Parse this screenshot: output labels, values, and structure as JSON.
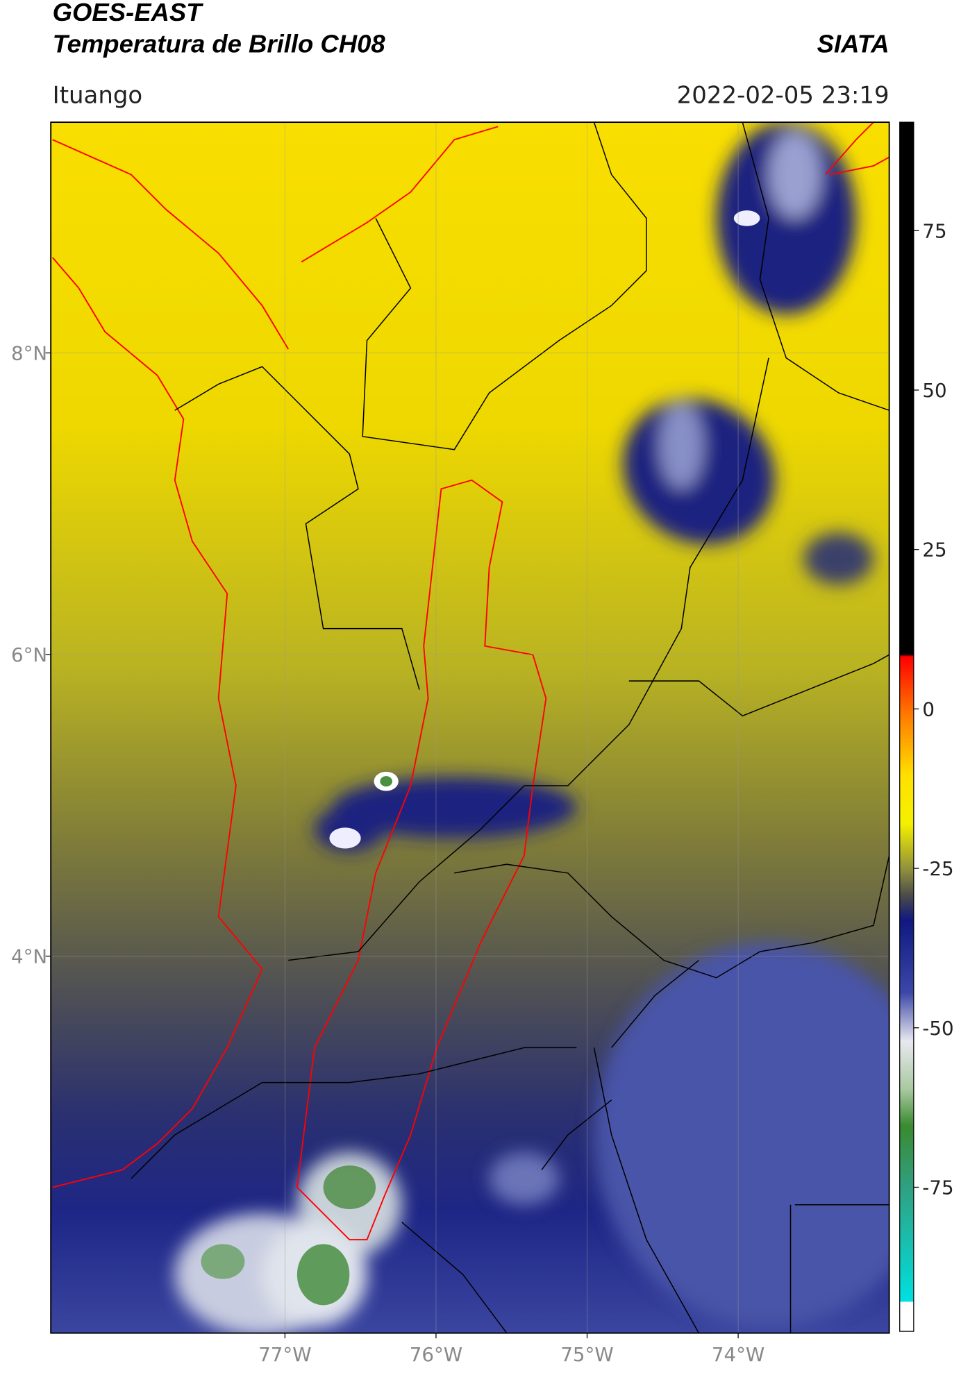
{
  "header": {
    "title": "GOES-EAST",
    "subtitle": "Temperatura de Brillo CH08",
    "agency": "SIATA",
    "place": "Ituango",
    "datetime": "2022-02-05 23:19"
  },
  "map": {
    "lonlim": [
      -78.55,
      -73.0
    ],
    "latlim": [
      1.5,
      9.53
    ],
    "lonticks": [
      {
        "value": -77,
        "label": "77°W"
      },
      {
        "value": -76,
        "label": "76°W"
      },
      {
        "value": -75,
        "label": "75°W"
      },
      {
        "value": -74,
        "label": "74°W"
      }
    ],
    "latticks": [
      {
        "value": 8,
        "label": "8°N"
      },
      {
        "value": 6,
        "label": "6°N"
      },
      {
        "value": 4,
        "label": "4°N"
      }
    ]
  },
  "colorbar": {
    "lim": [
      -97.6,
      92
    ],
    "ticks": [
      75,
      50,
      25,
      0,
      -25,
      -50,
      -75
    ]
  }
}
